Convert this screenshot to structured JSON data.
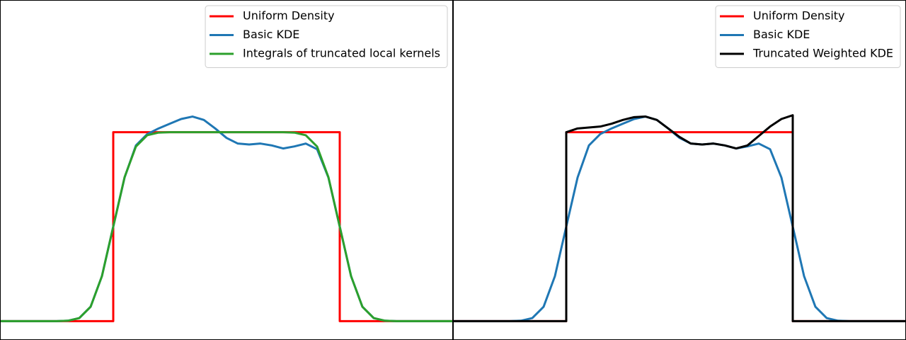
{
  "chart_data": [
    {
      "type": "line",
      "xlim": [
        -0.5,
        1.5
      ],
      "ylim": [
        -0.1,
        1.7
      ],
      "legend": "upper right",
      "series": [
        {
          "name": "Uniform Density",
          "color": "#ff0000",
          "x": [
            -0.5,
            0,
            0,
            1,
            1,
            1.5
          ],
          "values": [
            0,
            0,
            1,
            1,
            0,
            0
          ]
        },
        {
          "name": "Basic KDE",
          "color": "#1f77b4",
          "x": [
            -0.5,
            -0.45,
            -0.4,
            -0.35,
            -0.3,
            -0.25,
            -0.2,
            -0.15,
            -0.1,
            -0.05,
            0,
            0.05,
            0.1,
            0.15,
            0.2,
            0.25,
            0.3,
            0.35,
            0.4,
            0.45,
            0.5,
            0.55,
            0.6,
            0.65,
            0.7,
            0.75,
            0.8,
            0.85,
            0.9,
            0.95,
            1,
            1.05,
            1.1,
            1.15,
            1.2,
            1.25,
            1.3,
            1.35,
            1.4,
            1.45,
            1.5
          ],
          "values": [
            0,
            0,
            0,
            0,
            0,
            0,
            0.002,
            0.016,
            0.076,
            0.238,
            0.5,
            0.76,
            0.93,
            0.99,
            1.02,
            1.045,
            1.07,
            1.083,
            1.065,
            1.02,
            0.97,
            0.94,
            0.935,
            0.94,
            0.93,
            0.914,
            0.925,
            0.94,
            0.91,
            0.76,
            0.5,
            0.238,
            0.076,
            0.016,
            0.002,
            0,
            0,
            0,
            0,
            0,
            0
          ]
        },
        {
          "name": "Integrals of truncated local kernels",
          "color": "#2ca02c",
          "x": [
            -0.5,
            -0.45,
            -0.4,
            -0.35,
            -0.3,
            -0.25,
            -0.2,
            -0.15,
            -0.1,
            -0.05,
            0,
            0.05,
            0.1,
            0.15,
            0.2,
            0.25,
            0.3,
            0.35,
            0.4,
            0.45,
            0.5,
            0.55,
            0.6,
            0.65,
            0.7,
            0.75,
            0.8,
            0.85,
            0.9,
            0.95,
            1,
            1.05,
            1.1,
            1.15,
            1.2,
            1.25,
            1.3,
            1.35,
            1.4,
            1.45,
            1.5
          ],
          "values": [
            0,
            0,
            0,
            0,
            0,
            0,
            0.002,
            0.016,
            0.076,
            0.238,
            0.5,
            0.762,
            0.924,
            0.984,
            0.998,
            1,
            1,
            1,
            1,
            1,
            1,
            1,
            1,
            1,
            1,
            1,
            0.998,
            0.984,
            0.924,
            0.762,
            0.5,
            0.238,
            0.076,
            0.016,
            0.002,
            0,
            0,
            0,
            0,
            0,
            0
          ]
        }
      ]
    },
    {
      "type": "line",
      "xlim": [
        -0.5,
        1.5
      ],
      "ylim": [
        -0.1,
        1.7
      ],
      "legend": "upper right",
      "series": [
        {
          "name": "Uniform Density",
          "color": "#ff0000",
          "x": [
            -0.5,
            0,
            0,
            1,
            1,
            1.5
          ],
          "values": [
            0,
            0,
            1,
            1,
            0,
            0
          ]
        },
        {
          "name": "Basic KDE",
          "color": "#1f77b4",
          "x": [
            -0.5,
            -0.45,
            -0.4,
            -0.35,
            -0.3,
            -0.25,
            -0.2,
            -0.15,
            -0.1,
            -0.05,
            0,
            0.05,
            0.1,
            0.15,
            0.2,
            0.25,
            0.3,
            0.35,
            0.4,
            0.45,
            0.5,
            0.55,
            0.6,
            0.65,
            0.7,
            0.75,
            0.8,
            0.85,
            0.9,
            0.95,
            1,
            1.05,
            1.1,
            1.15,
            1.2,
            1.25,
            1.3,
            1.35,
            1.4,
            1.45,
            1.5
          ],
          "values": [
            0,
            0,
            0,
            0,
            0,
            0,
            0.002,
            0.016,
            0.076,
            0.238,
            0.5,
            0.76,
            0.93,
            0.99,
            1.02,
            1.045,
            1.07,
            1.083,
            1.065,
            1.02,
            0.97,
            0.94,
            0.935,
            0.94,
            0.93,
            0.914,
            0.925,
            0.94,
            0.91,
            0.76,
            0.5,
            0.238,
            0.076,
            0.016,
            0.002,
            0,
            0,
            0,
            0,
            0,
            0
          ]
        },
        {
          "name": "Truncated Weighted KDE",
          "color": "#000000",
          "x": [
            -0.5,
            0,
            0,
            0.05,
            0.1,
            0.15,
            0.2,
            0.25,
            0.3,
            0.35,
            0.4,
            0.45,
            0.5,
            0.55,
            0.6,
            0.65,
            0.7,
            0.75,
            0.8,
            0.85,
            0.9,
            0.95,
            1,
            1,
            1.5
          ],
          "values": [
            0,
            0,
            1,
            1.02,
            1.025,
            1.03,
            1.045,
            1.065,
            1.08,
            1.083,
            1.065,
            1.02,
            0.975,
            0.94,
            0.935,
            0.94,
            0.93,
            0.914,
            0.93,
            0.98,
            1.03,
            1.07,
            1.09,
            0,
            0
          ]
        }
      ]
    }
  ]
}
